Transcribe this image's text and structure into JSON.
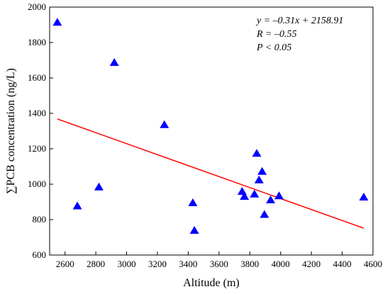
{
  "chart_data": {
    "type": "scatter",
    "xlabel": "Altitude (m)",
    "ylabel": "∑PCB concentration (ng/L)",
    "xlim": [
      2500,
      4600
    ],
    "ylim": [
      600,
      2000
    ],
    "xticks": [
      2600,
      2800,
      3000,
      3200,
      3400,
      3600,
      3800,
      4000,
      4200,
      4400,
      4600
    ],
    "yticks": [
      600,
      800,
      1000,
      1200,
      1400,
      1600,
      1800,
      2000
    ],
    "grid": false,
    "marker": "triangle",
    "marker_color": "#0000ff",
    "line_color": "#ff0000",
    "points": [
      {
        "x": 2550,
        "y": 1915
      },
      {
        "x": 2680,
        "y": 878
      },
      {
        "x": 2820,
        "y": 985
      },
      {
        "x": 2920,
        "y": 1688
      },
      {
        "x": 3245,
        "y": 1337
      },
      {
        "x": 3430,
        "y": 896
      },
      {
        "x": 3440,
        "y": 740
      },
      {
        "x": 3750,
        "y": 960
      },
      {
        "x": 3765,
        "y": 932
      },
      {
        "x": 3830,
        "y": 945
      },
      {
        "x": 3845,
        "y": 1175
      },
      {
        "x": 3860,
        "y": 1025
      },
      {
        "x": 3880,
        "y": 1073
      },
      {
        "x": 3895,
        "y": 830
      },
      {
        "x": 3935,
        "y": 912
      },
      {
        "x": 3990,
        "y": 935
      },
      {
        "x": 4540,
        "y": 928
      }
    ],
    "trend_line": {
      "x_start": 2550,
      "x_end": 4540,
      "slope": -0.31,
      "intercept": 2158.91
    },
    "annotations": {
      "equation": "y = –0.31x + 2158.91",
      "r": "R = –0.55",
      "p": "P < 0.05"
    }
  }
}
